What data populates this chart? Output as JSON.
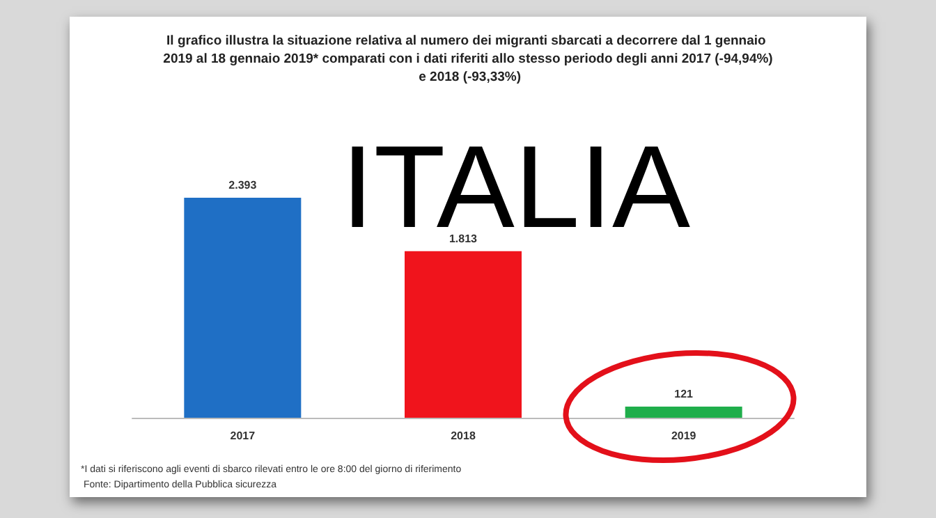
{
  "chart_data": {
    "type": "bar",
    "title": "Il grafico illustra la situazione relativa al numero dei migranti sbarcati a decorrere dal 1 gennaio 2019 al 18 gennaio 2019* comparati con i dati riferiti allo stesso periodo degli anni 2017 (-94,94%) e 2018 (-93,33%)",
    "categories": [
      "2017",
      "2018",
      "2019"
    ],
    "values": [
      2393,
      1813,
      121
    ],
    "colors": [
      "#1f6fc5",
      "#f0141c",
      "#1fae4b"
    ],
    "value_labels": [
      "2.393",
      "1.813",
      "121"
    ],
    "annotations": [
      "ITALIA",
      "*I dati si riferiscono agli eventi di sbarco rilevati entro le ore 8:00 del giorno di riferimento",
      "Fonte: Dipartimento della Pubblica sicurezza"
    ]
  }
}
